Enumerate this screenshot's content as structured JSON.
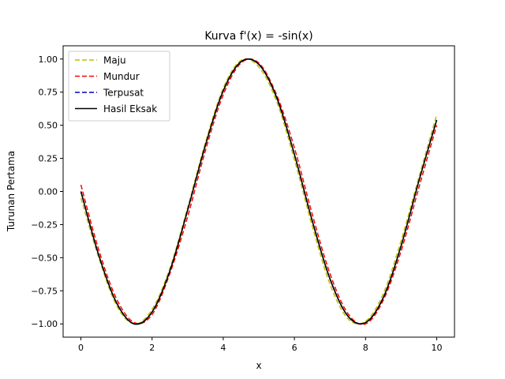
{
  "chart_data": {
    "type": "line",
    "title": "Kurva f'(x) = -sin(x)",
    "xlabel": "x",
    "ylabel": "Turunan Pertama",
    "xlim": [
      -0.5,
      10.5
    ],
    "ylim": [
      -1.1,
      1.1
    ],
    "xticks": [
      0,
      2,
      4,
      6,
      8,
      10
    ],
    "xtick_labels": [
      "0",
      "2",
      "4",
      "6",
      "8",
      "10"
    ],
    "yticks": [
      -1.0,
      -0.75,
      -0.5,
      -0.25,
      0.0,
      0.25,
      0.5,
      0.75,
      1.0
    ],
    "ytick_labels": [
      "−1.00",
      "−0.75",
      "−0.50",
      "−0.25",
      "0.00",
      "0.25",
      "0.50",
      "0.75",
      "1.00"
    ],
    "grid": false,
    "legend_position": "upper-left",
    "series": [
      {
        "name": "Maju",
        "color": "#bfbf00",
        "dash": "dashed",
        "x": [
          0,
          0.5,
          1,
          1.5,
          2,
          2.5,
          3,
          3.5,
          4,
          4.5,
          5,
          5.5,
          6,
          6.5,
          7,
          7.5,
          8,
          8.5,
          9,
          9.5,
          10
        ],
        "y": [
          -0.05,
          -0.5,
          -0.86,
          -1.0,
          -0.89,
          -0.58,
          -0.12,
          0.37,
          0.78,
          0.99,
          0.94,
          0.68,
          0.24,
          -0.26,
          -0.7,
          -0.96,
          -0.98,
          -0.77,
          -0.37,
          0.11,
          0.58
        ]
      },
      {
        "name": "Mundur",
        "color": "#ff0000",
        "dash": "dashed",
        "x": [
          0,
          0.5,
          1,
          1.5,
          2,
          2.5,
          3,
          3.5,
          4,
          4.5,
          5,
          5.5,
          6,
          6.5,
          7,
          7.5,
          8,
          8.5,
          9,
          9.5,
          10
        ],
        "y": [
          0.05,
          -0.44,
          -0.81,
          -0.99,
          -0.93,
          -0.62,
          -0.19,
          0.31,
          0.73,
          0.97,
          0.97,
          0.73,
          0.33,
          -0.17,
          -0.62,
          -0.92,
          -1.0,
          -0.82,
          -0.45,
          0.03,
          0.5
        ]
      },
      {
        "name": "Terpusat",
        "color": "#0000bf",
        "dash": "dashed",
        "x": [
          0,
          0.5,
          1,
          1.5,
          2,
          2.5,
          3,
          3.5,
          4,
          4.5,
          5,
          5.5,
          6,
          6.5,
          7,
          7.5,
          8,
          8.5,
          9,
          9.5,
          10
        ],
        "y": [
          0.0,
          -0.48,
          -0.84,
          -1.0,
          -0.91,
          -0.6,
          -0.14,
          0.35,
          0.76,
          0.98,
          0.96,
          0.71,
          0.28,
          -0.22,
          -0.66,
          -0.94,
          -0.99,
          -0.8,
          -0.41,
          0.08,
          0.54
        ]
      },
      {
        "name": "Hasil Eksak",
        "color": "#000000",
        "dash": "solid",
        "x": [
          0,
          0.5,
          1,
          1.5,
          2,
          2.5,
          3,
          3.5,
          4,
          4.5,
          5,
          5.5,
          6,
          6.5,
          7,
          7.5,
          8,
          8.5,
          9,
          9.5,
          10
        ],
        "y": [
          0.0,
          -0.48,
          -0.84,
          -1.0,
          -0.91,
          -0.6,
          -0.14,
          0.35,
          0.76,
          0.98,
          0.96,
          0.71,
          0.28,
          -0.22,
          -0.66,
          -0.94,
          -0.99,
          -0.8,
          -0.41,
          0.08,
          0.54
        ]
      }
    ]
  }
}
